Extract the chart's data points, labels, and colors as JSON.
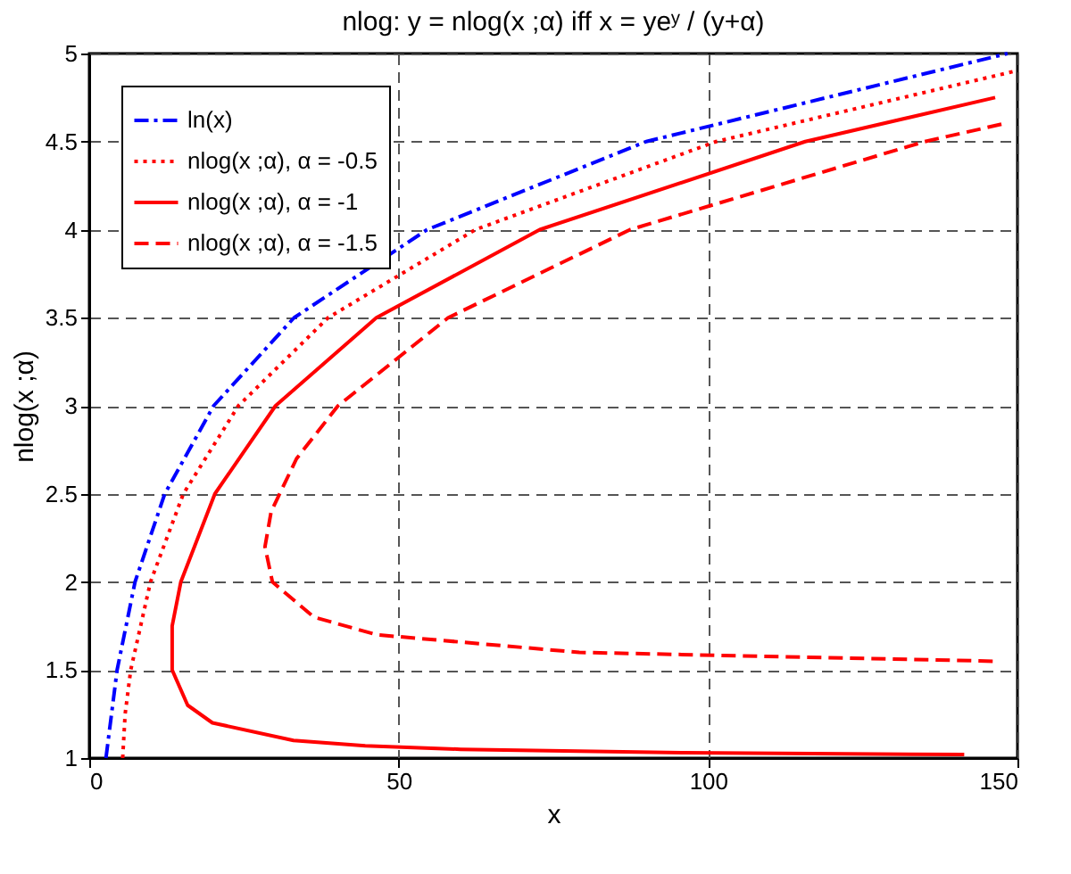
{
  "chart_data": {
    "type": "line",
    "title": "nlog: y = nlog(x ;α) iff x = yeʸ / (y+α)",
    "xlabel": "x",
    "ylabel": "nlog(x ;α)",
    "xlim": [
      0,
      150
    ],
    "ylim": [
      1,
      5
    ],
    "xticks": [
      0,
      50,
      100,
      150
    ],
    "yticks": [
      1,
      1.5,
      2,
      2.5,
      3,
      3.5,
      4,
      4.5,
      5
    ],
    "grid": true,
    "legend": "top left",
    "marker": "none",
    "series": [
      {
        "name": "ln(x)",
        "color": "#0000ff",
        "line_style": "dashdot",
        "x": [
          2.7,
          4.5,
          7.4,
          12.2,
          20.1,
          33.1,
          54.6,
          90,
          148.4
        ],
        "values": [
          1,
          1.5,
          2,
          2.5,
          3,
          3.5,
          4,
          4.5,
          5
        ]
      },
      {
        "name": "nlog(x ;α), α = -0.5",
        "color": "#ff0000",
        "line_style": "dotted",
        "x": [
          5.4,
          5.8,
          6.7,
          9.9,
          15.2,
          24.1,
          38.6,
          62.4,
          101.3,
          149.6
        ],
        "values": [
          1,
          1.25,
          1.5,
          2,
          2.5,
          3,
          3.5,
          4,
          4.5,
          4.9
        ]
      },
      {
        "name": "nlog(x ;α), α = -1",
        "color": "#ff0000",
        "line_style": "solid",
        "x": [
          141.4,
          96.2,
          60,
          44.6,
          33,
          19.9,
          15.9,
          13.4,
          13.4,
          14.8,
          20.3,
          30.1,
          46.4,
          72.8,
          115.7,
          146.4
        ],
        "values": [
          1.02,
          1.03,
          1.05,
          1.07,
          1.1,
          1.2,
          1.3,
          1.5,
          1.75,
          2,
          2.5,
          3,
          3.5,
          4,
          4.5,
          4.75
        ]
      },
      {
        "name": "nlog(x ;α), α = -1.5",
        "color": "#ff0000",
        "line_style": "dashed",
        "x": [
          146,
          79.2,
          46.5,
          36.3,
          29.6,
          28.4,
          29.4,
          33.5,
          40.2,
          58,
          87.4,
          135,
          147.6
        ],
        "values": [
          1.55,
          1.6,
          1.7,
          1.8,
          2,
          2.2,
          2.4,
          2.7,
          3,
          3.5,
          4,
          4.5,
          4.6
        ]
      }
    ]
  }
}
